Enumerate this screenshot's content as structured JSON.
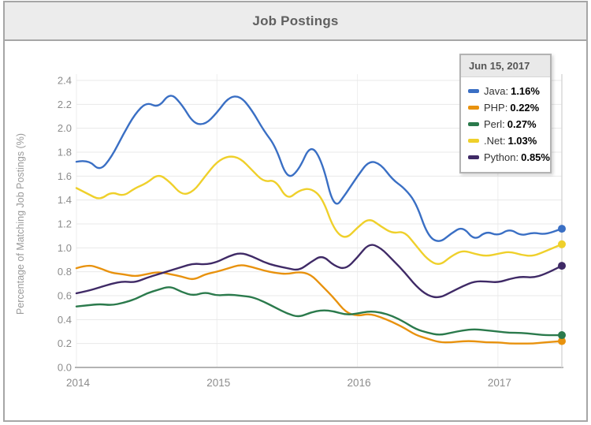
{
  "window": {
    "title": "Job Postings"
  },
  "tooltip": {
    "date": "Jun 15, 2017",
    "separator": ": ",
    "rows": [
      {
        "label": "Java",
        "value": "1.16%"
      },
      {
        "label": "PHP",
        "value": "0.22%"
      },
      {
        "label": "Perl",
        "value": "0.27%"
      },
      {
        "label": ".Net",
        "value": "1.03%"
      },
      {
        "label": "Python",
        "value": "0.85%"
      }
    ]
  },
  "chart_data": {
    "type": "line",
    "title": "Job Postings",
    "ylabel": "Percentage of Matching Job Postings (%)",
    "ylim": [
      0.0,
      2.4
    ],
    "ytick_step": 0.2,
    "xticks": [
      "2014",
      "2015",
      "2016",
      "2017"
    ],
    "x_start": 2014.0,
    "x_end": 2017.455,
    "x_step_years": 0.08333,
    "hover_date": "Jun 15, 2017",
    "grid": true,
    "legend_position": "tooltip-top-right",
    "series": [
      {
        "name": "Java",
        "color": "#3a6fc4",
        "final_value": 1.16,
        "values": [
          1.72,
          1.74,
          1.64,
          1.76,
          1.95,
          2.12,
          2.22,
          2.17,
          2.3,
          2.2,
          2.04,
          2.03,
          2.13,
          2.26,
          2.27,
          2.15,
          1.98,
          1.85,
          1.57,
          1.65,
          1.87,
          1.72,
          1.32,
          1.45,
          1.6,
          1.73,
          1.7,
          1.57,
          1.5,
          1.38,
          1.1,
          1.04,
          1.12,
          1.18,
          1.06,
          1.14,
          1.1,
          1.16,
          1.1,
          1.13,
          1.11,
          1.16
        ]
      },
      {
        "name": "PHP",
        "color": "#e8920e",
        "final_value": 0.22,
        "values": [
          0.83,
          0.86,
          0.83,
          0.79,
          0.78,
          0.76,
          0.78,
          0.8,
          0.78,
          0.76,
          0.73,
          0.78,
          0.8,
          0.83,
          0.86,
          0.84,
          0.81,
          0.79,
          0.78,
          0.8,
          0.78,
          0.68,
          0.58,
          0.46,
          0.43,
          0.45,
          0.42,
          0.38,
          0.33,
          0.27,
          0.24,
          0.21,
          0.21,
          0.22,
          0.22,
          0.21,
          0.21,
          0.2,
          0.2,
          0.2,
          0.21,
          0.22
        ]
      },
      {
        "name": "Perl",
        "color": "#2b7a4c",
        "final_value": 0.27,
        "values": [
          0.51,
          0.52,
          0.53,
          0.52,
          0.54,
          0.57,
          0.62,
          0.65,
          0.68,
          0.63,
          0.6,
          0.63,
          0.6,
          0.61,
          0.6,
          0.59,
          0.55,
          0.5,
          0.45,
          0.42,
          0.46,
          0.48,
          0.47,
          0.44,
          0.45,
          0.47,
          0.46,
          0.43,
          0.38,
          0.32,
          0.29,
          0.27,
          0.29,
          0.31,
          0.32,
          0.31,
          0.3,
          0.29,
          0.29,
          0.28,
          0.27,
          0.27
        ]
      },
      {
        "name": ".Net",
        "color": "#efd02b",
        "final_value": 1.03,
        "values": [
          1.5,
          1.45,
          1.4,
          1.47,
          1.43,
          1.5,
          1.54,
          1.62,
          1.55,
          1.44,
          1.47,
          1.6,
          1.72,
          1.77,
          1.75,
          1.65,
          1.55,
          1.57,
          1.4,
          1.48,
          1.5,
          1.42,
          1.15,
          1.07,
          1.17,
          1.25,
          1.18,
          1.12,
          1.14,
          1.02,
          0.9,
          0.85,
          0.93,
          0.98,
          0.95,
          0.93,
          0.95,
          0.97,
          0.94,
          0.93,
          0.97,
          1.03
        ]
      },
      {
        "name": "Python",
        "color": "#3f2a66",
        "final_value": 0.85,
        "values": [
          0.62,
          0.64,
          0.67,
          0.7,
          0.72,
          0.71,
          0.75,
          0.78,
          0.81,
          0.84,
          0.87,
          0.86,
          0.88,
          0.93,
          0.96,
          0.93,
          0.88,
          0.85,
          0.83,
          0.81,
          0.88,
          0.94,
          0.85,
          0.82,
          0.92,
          1.04,
          1.0,
          0.9,
          0.8,
          0.68,
          0.6,
          0.58,
          0.63,
          0.68,
          0.72,
          0.72,
          0.71,
          0.74,
          0.76,
          0.75,
          0.78,
          0.85
        ]
      }
    ],
    "colors": {
      "grid": "#e8e8e8",
      "grid_vertical": "#eeeeee",
      "axis_line": "#b3b3b3",
      "tick_text": "#8c8c8c",
      "axis_title": "#9a9a9a",
      "crosshair": "#d8d8d8"
    }
  }
}
